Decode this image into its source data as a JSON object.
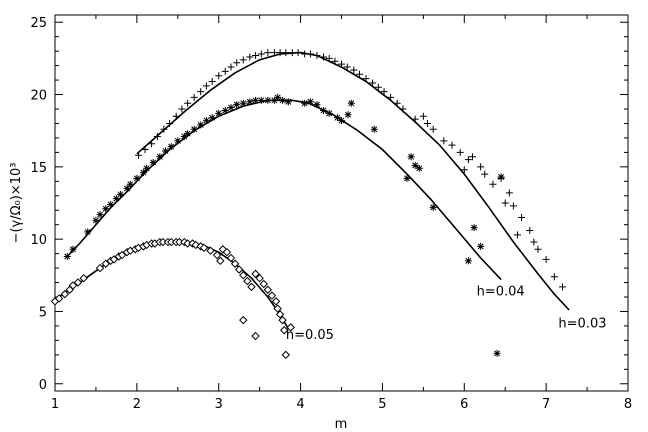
{
  "chart_data": {
    "type": "scatter",
    "title": "",
    "xlabel": "m",
    "ylabel": "−(γ/Ω₀)×10³",
    "xlim": [
      1,
      8
    ],
    "ylim": [
      -0.5,
      25.5
    ],
    "xticks": [
      1,
      2,
      3,
      4,
      5,
      6,
      7,
      8
    ],
    "yticks": [
      0,
      5,
      10,
      15,
      20,
      25
    ],
    "grid": false,
    "series": [
      {
        "name": "h=0.03",
        "marker": "plus",
        "label_at": [
          7.15,
          3.9
        ],
        "points": [
          [
            2.02,
            15.8
          ],
          [
            2.1,
            16.2
          ],
          [
            2.18,
            16.6
          ],
          [
            2.25,
            17.1
          ],
          [
            2.33,
            17.6
          ],
          [
            2.4,
            18.0
          ],
          [
            2.48,
            18.5
          ],
          [
            2.55,
            19.0
          ],
          [
            2.62,
            19.4
          ],
          [
            2.7,
            19.8
          ],
          [
            2.78,
            20.2
          ],
          [
            2.85,
            20.6
          ],
          [
            2.92,
            20.9
          ],
          [
            3.0,
            21.3
          ],
          [
            3.08,
            21.6
          ],
          [
            3.15,
            21.9
          ],
          [
            3.22,
            22.2
          ],
          [
            3.3,
            22.4
          ],
          [
            3.38,
            22.6
          ],
          [
            3.45,
            22.7
          ],
          [
            3.52,
            22.8
          ],
          [
            3.6,
            22.9
          ],
          [
            3.68,
            22.9
          ],
          [
            3.75,
            22.9
          ],
          [
            3.82,
            22.9
          ],
          [
            3.9,
            22.9
          ],
          [
            3.97,
            22.9
          ],
          [
            4.05,
            22.8
          ],
          [
            4.12,
            22.8
          ],
          [
            4.2,
            22.7
          ],
          [
            4.28,
            22.6
          ],
          [
            4.35,
            22.5
          ],
          [
            4.42,
            22.3
          ],
          [
            4.5,
            22.1
          ],
          [
            4.57,
            21.9
          ],
          [
            4.65,
            21.7
          ],
          [
            4.72,
            21.4
          ],
          [
            4.8,
            21.1
          ],
          [
            4.88,
            20.8
          ],
          [
            4.95,
            20.5
          ],
          [
            5.02,
            20.2
          ],
          [
            5.1,
            19.8
          ],
          [
            5.18,
            19.4
          ],
          [
            5.25,
            19.0
          ],
          [
            5.4,
            18.3
          ],
          [
            5.5,
            18.5
          ],
          [
            5.55,
            18.0
          ],
          [
            5.62,
            17.6
          ],
          [
            5.75,
            16.8
          ],
          [
            5.85,
            16.5
          ],
          [
            5.95,
            16.0
          ],
          [
            6.05,
            15.5
          ],
          [
            6.1,
            15.7
          ],
          [
            6.0,
            14.8
          ],
          [
            6.2,
            15.0
          ],
          [
            6.25,
            14.5
          ],
          [
            6.35,
            13.8
          ],
          [
            6.5,
            12.5
          ],
          [
            6.55,
            13.2
          ],
          [
            6.6,
            12.3
          ],
          [
            6.7,
            11.5
          ],
          [
            6.8,
            10.6
          ],
          [
            6.85,
            9.8
          ],
          [
            6.9,
            9.3
          ],
          [
            7.0,
            8.6
          ],
          [
            7.1,
            7.4
          ],
          [
            7.2,
            6.7
          ],
          [
            6.65,
            10.3
          ],
          [
            6.45,
            14.2
          ]
        ]
      },
      {
        "name": "h=0.04",
        "marker": "asterisk",
        "label_at": [
          6.15,
          6.1
        ],
        "points": [
          [
            1.15,
            8.8
          ],
          [
            1.22,
            9.3
          ],
          [
            1.4,
            10.5
          ],
          [
            1.5,
            11.3
          ],
          [
            1.55,
            11.7
          ],
          [
            1.62,
            12.1
          ],
          [
            1.68,
            12.4
          ],
          [
            1.75,
            12.8
          ],
          [
            1.8,
            13.1
          ],
          [
            1.88,
            13.5
          ],
          [
            1.92,
            13.8
          ],
          [
            2.0,
            14.2
          ],
          [
            2.08,
            14.6
          ],
          [
            2.12,
            14.9
          ],
          [
            2.2,
            15.3
          ],
          [
            2.28,
            15.7
          ],
          [
            2.35,
            16.1
          ],
          [
            2.42,
            16.4
          ],
          [
            2.5,
            16.8
          ],
          [
            2.58,
            17.1
          ],
          [
            2.62,
            17.3
          ],
          [
            2.7,
            17.6
          ],
          [
            2.78,
            17.9
          ],
          [
            2.85,
            18.2
          ],
          [
            2.92,
            18.4
          ],
          [
            3.0,
            18.7
          ],
          [
            3.08,
            18.9
          ],
          [
            3.15,
            19.1
          ],
          [
            3.22,
            19.3
          ],
          [
            3.3,
            19.4
          ],
          [
            3.38,
            19.5
          ],
          [
            3.45,
            19.6
          ],
          [
            3.52,
            19.6
          ],
          [
            3.6,
            19.6
          ],
          [
            3.68,
            19.6
          ],
          [
            3.72,
            19.8
          ],
          [
            3.78,
            19.6
          ],
          [
            3.85,
            19.5
          ],
          [
            4.05,
            19.4
          ],
          [
            4.12,
            19.5
          ],
          [
            4.2,
            19.3
          ],
          [
            4.28,
            18.9
          ],
          [
            4.35,
            18.7
          ],
          [
            4.45,
            18.4
          ],
          [
            4.5,
            18.2
          ],
          [
            4.58,
            18.6
          ],
          [
            4.62,
            19.4
          ],
          [
            4.9,
            17.6
          ],
          [
            5.3,
            14.2
          ],
          [
            5.35,
            15.7
          ],
          [
            5.4,
            15.1
          ],
          [
            5.45,
            14.9
          ],
          [
            5.62,
            12.2
          ],
          [
            6.05,
            8.5
          ],
          [
            6.12,
            10.8
          ],
          [
            6.2,
            9.5
          ],
          [
            6.4,
            2.1
          ],
          [
            6.45,
            14.3
          ]
        ]
      },
      {
        "name": "h=0.05",
        "marker": "diamond",
        "label_at": [
          3.82,
          3.1
        ],
        "points": [
          [
            1.0,
            5.7
          ],
          [
            1.05,
            5.9
          ],
          [
            1.12,
            6.2
          ],
          [
            1.18,
            6.5
          ],
          [
            1.22,
            6.8
          ],
          [
            1.28,
            7.0
          ],
          [
            1.35,
            7.3
          ],
          [
            1.55,
            8.0
          ],
          [
            1.62,
            8.3
          ],
          [
            1.68,
            8.5
          ],
          [
            1.72,
            8.6
          ],
          [
            1.78,
            8.8
          ],
          [
            1.82,
            8.9
          ],
          [
            1.88,
            9.1
          ],
          [
            1.92,
            9.2
          ],
          [
            1.98,
            9.3
          ],
          [
            2.02,
            9.4
          ],
          [
            2.08,
            9.5
          ],
          [
            2.12,
            9.6
          ],
          [
            2.18,
            9.7
          ],
          [
            2.22,
            9.7
          ],
          [
            2.28,
            9.8
          ],
          [
            2.32,
            9.8
          ],
          [
            2.38,
            9.8
          ],
          [
            2.42,
            9.8
          ],
          [
            2.48,
            9.8
          ],
          [
            2.52,
            9.8
          ],
          [
            2.58,
            9.8
          ],
          [
            2.62,
            9.7
          ],
          [
            2.68,
            9.7
          ],
          [
            2.72,
            9.6
          ],
          [
            2.78,
            9.5
          ],
          [
            2.82,
            9.4
          ],
          [
            2.9,
            9.2
          ],
          [
            2.98,
            8.9
          ],
          [
            3.02,
            8.5
          ],
          [
            3.05,
            9.3
          ],
          [
            3.1,
            9.1
          ],
          [
            3.15,
            8.7
          ],
          [
            3.2,
            8.3
          ],
          [
            3.25,
            7.9
          ],
          [
            3.3,
            7.5
          ],
          [
            3.35,
            7.1
          ],
          [
            3.4,
            6.7
          ],
          [
            3.45,
            7.6
          ],
          [
            3.5,
            7.3
          ],
          [
            3.55,
            6.9
          ],
          [
            3.6,
            6.5
          ],
          [
            3.65,
            6.1
          ],
          [
            3.7,
            5.7
          ],
          [
            3.72,
            5.2
          ],
          [
            3.75,
            4.8
          ],
          [
            3.78,
            4.4
          ],
          [
            3.8,
            3.7
          ],
          [
            3.82,
            2.0
          ],
          [
            3.3,
            4.4
          ],
          [
            3.45,
            3.3
          ],
          [
            3.88,
            3.9
          ]
        ]
      }
    ],
    "fit_curves": [
      {
        "series": "h=0.03",
        "points": [
          [
            2.0,
            15.9
          ],
          [
            2.3,
            17.4
          ],
          [
            2.6,
            18.9
          ],
          [
            2.9,
            20.3
          ],
          [
            3.2,
            21.5
          ],
          [
            3.5,
            22.4
          ],
          [
            3.75,
            22.8
          ],
          [
            4.0,
            22.9
          ],
          [
            4.2,
            22.7
          ],
          [
            4.5,
            21.9
          ],
          [
            4.8,
            20.9
          ],
          [
            5.1,
            19.6
          ],
          [
            5.4,
            18.1
          ],
          [
            5.7,
            16.5
          ],
          [
            6.0,
            14.5
          ],
          [
            6.3,
            12.2
          ],
          [
            6.6,
            9.8
          ],
          [
            6.9,
            7.6
          ],
          [
            7.1,
            6.2
          ],
          [
            7.28,
            5.1
          ]
        ]
      },
      {
        "series": "h=0.04",
        "points": [
          [
            1.15,
            8.8
          ],
          [
            1.3,
            9.7
          ],
          [
            1.5,
            11.0
          ],
          [
            1.7,
            12.3
          ],
          [
            1.9,
            13.4
          ],
          [
            2.1,
            14.6
          ],
          [
            2.4,
            16.2
          ],
          [
            2.7,
            17.5
          ],
          [
            3.0,
            18.5
          ],
          [
            3.3,
            19.2
          ],
          [
            3.6,
            19.6
          ],
          [
            3.9,
            19.6
          ],
          [
            4.1,
            19.4
          ],
          [
            4.4,
            18.6
          ],
          [
            4.7,
            17.5
          ],
          [
            5.0,
            16.2
          ],
          [
            5.3,
            14.5
          ],
          [
            5.6,
            12.7
          ],
          [
            5.9,
            10.7
          ],
          [
            6.2,
            8.7
          ],
          [
            6.45,
            7.2
          ]
        ]
      },
      {
        "series": "h=0.05",
        "points": [
          [
            1.0,
            5.8
          ],
          [
            1.2,
            6.6
          ],
          [
            1.4,
            7.4
          ],
          [
            1.6,
            8.2
          ],
          [
            1.8,
            8.9
          ],
          [
            2.0,
            9.4
          ],
          [
            2.2,
            9.7
          ],
          [
            2.4,
            9.8
          ],
          [
            2.6,
            9.8
          ],
          [
            2.8,
            9.6
          ],
          [
            3.0,
            9.1
          ],
          [
            3.2,
            8.3
          ],
          [
            3.4,
            7.3
          ],
          [
            3.6,
            6.0
          ],
          [
            3.75,
            4.8
          ],
          [
            3.85,
            3.8
          ]
        ]
      }
    ]
  }
}
